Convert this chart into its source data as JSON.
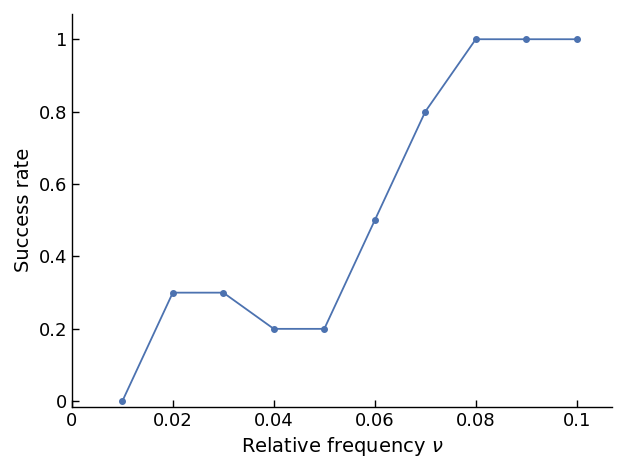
{
  "x": [
    0.01,
    0.02,
    0.03,
    0.04,
    0.05,
    0.06,
    0.07,
    0.08,
    0.09,
    0.1
  ],
  "y": [
    0.0,
    0.3,
    0.3,
    0.2,
    0.2,
    0.5,
    0.8,
    1.0,
    1.0,
    1.0
  ],
  "line_color": "#4C72B0",
  "marker": "o",
  "marker_size": 4,
  "linewidth": 1.3,
  "xlabel": "Relative frequency $\\nu$",
  "ylabel": "Success rate",
  "xlim": [
    0,
    0.107
  ],
  "ylim": [
    -0.015,
    1.07
  ],
  "xticks": [
    0,
    0.02,
    0.04,
    0.06,
    0.08,
    0.1
  ],
  "yticks": [
    0,
    0.2,
    0.4,
    0.6,
    0.8,
    1.0
  ],
  "xtick_labels": [
    "0",
    "0.02",
    "0.04",
    "0.06",
    "0.08",
    "0.1"
  ],
  "ytick_labels": [
    "0",
    "0.2",
    "0.4",
    "0.6",
    "0.8",
    "1"
  ],
  "xlabel_fontsize": 14,
  "ylabel_fontsize": 14,
  "tick_fontsize": 13,
  "figure_width": 6.26,
  "figure_height": 4.72,
  "dpi": 100
}
